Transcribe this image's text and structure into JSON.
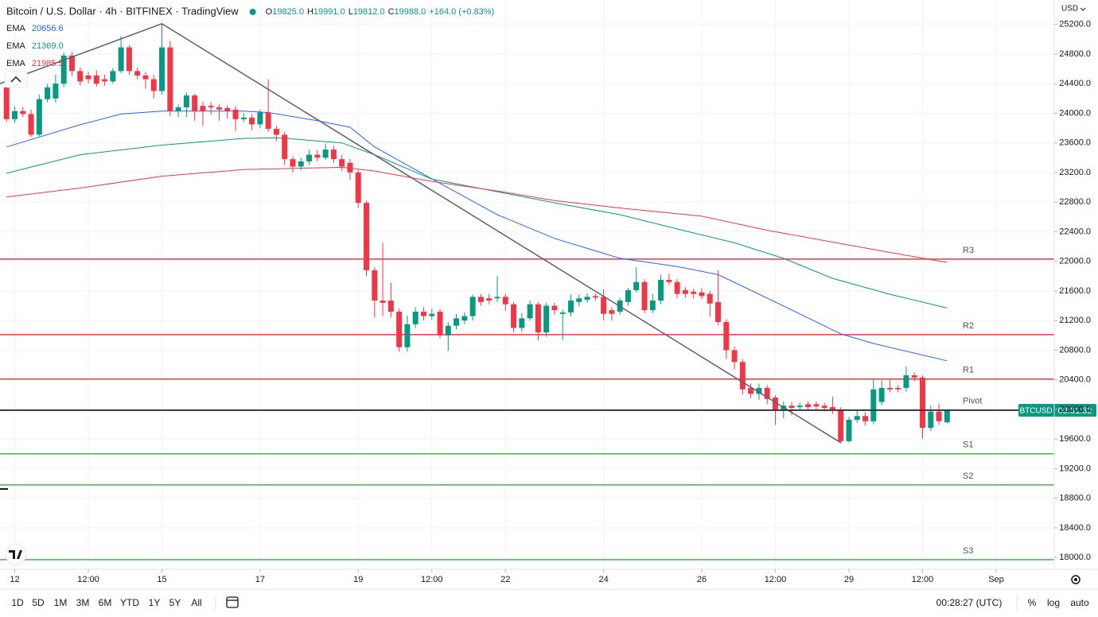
{
  "chart_data": {
    "type": "candlestick",
    "title": "Bitcoin / U.S. Dollar · 4h · BITFINEX · TradingView",
    "status_line": [
      {
        "label": "O",
        "value": "19825.0"
      },
      {
        "label": "H",
        "value": "19991.0"
      },
      {
        "label": "L",
        "value": "19812.0"
      },
      {
        "label": "C",
        "value": "19988.0"
      }
    ],
    "change": "+164.0 (+0.83%)",
    "currency": "USD",
    "symbol": "BTCUSD",
    "countdown": "03:31:32",
    "up_color": "#089981",
    "down_color": "#f23645",
    "open": [
      24350,
      23920,
      24030,
      23990,
      23710,
      24190,
      24200,
      24400,
      24780,
      24570,
      24510,
      24510,
      24460,
      24430,
      24570,
      24890,
      24570,
      24510,
      24460,
      24300,
      24890,
      24030,
      24080,
      24240,
      24100,
      24100,
      24080,
      24070,
      24050,
      23920,
      23940,
      23850,
      24010,
      23790,
      23710,
      23380,
      23280,
      23350,
      23440,
      23400,
      23510,
      23380,
      23330,
      23200,
      22790,
      21880,
      21470,
      21470,
      21320,
      20840,
      21150,
      21320,
      21260,
      21320,
      21000,
      21130,
      21200,
      21260,
      21520,
      21500,
      21500,
      21520,
      21420,
      21100,
      21230,
      21420,
      21040,
      21400,
      21290,
      21310,
      21450,
      21480,
      21530,
      21520,
      21340,
      21320,
      21450,
      21610,
      21720,
      21340,
      21470,
      21750,
      21720,
      21610,
      21590,
      21580,
      21560,
      21450,
      21180,
      20800,
      20640,
      20290,
      20210,
      20290,
      20160,
      20000,
      20050,
      20030,
      20070,
      20070,
      20050,
      20030,
      19990,
      19570,
      19860,
      19910,
      19840,
      20100,
      20290,
      20290,
      20290,
      20460,
      20430,
      19750,
      19970,
      19825
    ],
    "high": [
      24420,
      24090,
      24080,
      24050,
      24250,
      24400,
      24520,
      24820,
      24830,
      24620,
      24560,
      24580,
      24520,
      24610,
      25040,
      24920,
      24620,
      24560,
      24520,
      25210,
      24980,
      24120,
      24280,
      24260,
      24160,
      24150,
      24120,
      24110,
      24100,
      24000,
      23990,
      24050,
      24460,
      23830,
      23750,
      23420,
      23400,
      23510,
      23500,
      23590,
      23560,
      23440,
      23380,
      23230,
      22820,
      21920,
      22250,
      21710,
      21360,
      21270,
      21380,
      21380,
      21360,
      21360,
      21180,
      21290,
      21310,
      21550,
      21560,
      21560,
      21800,
      21560,
      21450,
      21300,
      21470,
      21450,
      21440,
      21440,
      21350,
      21550,
      21550,
      21570,
      21560,
      21620,
      21380,
      21510,
      21640,
      21920,
      21760,
      21560,
      21820,
      21830,
      21760,
      21650,
      21630,
      21640,
      21600,
      21880,
      21220,
      20850,
      20680,
      20350,
      20350,
      20330,
      20190,
      20110,
      20100,
      20090,
      20110,
      20110,
      20090,
      20170,
      20030,
      19900,
      19980,
      19960,
      20420,
      20390,
      20400,
      20330,
      20580,
      20500,
      20460,
      20050,
      20080,
      19991
    ],
    "low": [
      23880,
      23870,
      23950,
      23680,
      23690,
      24150,
      24150,
      24350,
      24500,
      24380,
      24400,
      24360,
      24370,
      24400,
      24540,
      24520,
      24460,
      24330,
      24200,
      24250,
      23960,
      23950,
      23950,
      23900,
      23830,
      23980,
      23900,
      23930,
      23760,
      23880,
      23770,
      23800,
      23750,
      23620,
      23300,
      23200,
      23230,
      23300,
      23350,
      23370,
      23330,
      23220,
      23100,
      22720,
      21800,
      21240,
      21260,
      21240,
      20780,
      20780,
      21100,
      21200,
      21210,
      20960,
      20790,
      21080,
      21150,
      21200,
      21400,
      21420,
      21450,
      21330,
      21040,
      21050,
      21200,
      20930,
      20980,
      21280,
      20940,
      21260,
      21390,
      21440,
      21470,
      21200,
      21200,
      21280,
      21400,
      21580,
      21300,
      21300,
      21420,
      21680,
      21500,
      21510,
      21500,
      21490,
      21250,
      21140,
      20680,
      20540,
      20200,
      20150,
      20130,
      20070,
      19790,
      19880,
      19920,
      19990,
      19990,
      19980,
      19970,
      19940,
      19540,
      19550,
      19820,
      19780,
      19800,
      20060,
      20230,
      20230,
      20240,
      20380,
      19610,
      19710,
      19790,
      19812
    ],
    "close": [
      23920,
      24030,
      23990,
      23710,
      24190,
      24350,
      24400,
      24780,
      24570,
      24430,
      24460,
      24400,
      24430,
      24570,
      24890,
      24570,
      24510,
      24460,
      24300,
      24890,
      24030,
      24080,
      24240,
      24030,
      24030,
      24080,
      24050,
      24030,
      23920,
      23940,
      23850,
      24010,
      23790,
      23710,
      23380,
      23280,
      23350,
      23440,
      23400,
      23510,
      23380,
      23280,
      23200,
      22790,
      21880,
      21470,
      21440,
      21320,
      20840,
      21150,
      21320,
      21260,
      21290,
      21000,
      21130,
      21230,
      21260,
      21520,
      21450,
      21470,
      21520,
      21420,
      21100,
      21230,
      21420,
      21040,
      21400,
      21340,
      21310,
      21470,
      21500,
      21520,
      21510,
      21290,
      21290,
      21470,
      21610,
      21720,
      21340,
      21470,
      21750,
      21720,
      21560,
      21560,
      21560,
      21530,
      21430,
      21180,
      20800,
      20640,
      20270,
      20210,
      20290,
      20140,
      20000,
      20050,
      20020,
      20050,
      20030,
      20040,
      20020,
      19990,
      19570,
      19860,
      19910,
      19840,
      20270,
      20290,
      20270,
      20270,
      20460,
      20430,
      19750,
      19970,
      19840,
      19988
    ],
    "series": [
      {
        "name": "EMA",
        "label": "20656.6",
        "color": "#2962ff",
        "x": [
          0,
          9,
          14,
          19,
          29,
          32,
          38,
          42,
          45,
          52,
          60,
          67,
          75,
          82,
          87,
          91,
          97,
          102,
          106,
          111,
          115
        ],
        "values": [
          23545,
          23845,
          23990,
          24030,
          24030,
          24010,
          23900,
          23810,
          23545,
          23115,
          22630,
          22310,
          22040,
          21930,
          21820,
          21610,
          21290,
          21020,
          20890,
          20760,
          20656.6
        ]
      },
      {
        "name": "EMA",
        "label": "21369.0",
        "color": "#089981",
        "x": [
          0,
          9,
          19,
          29,
          33,
          41,
          45,
          52,
          60,
          67,
          75,
          83,
          89,
          95,
          101,
          108,
          115
        ],
        "values": [
          23190,
          23440,
          23570,
          23660,
          23670,
          23600,
          23440,
          23110,
          22940,
          22790,
          22630,
          22410,
          22250,
          22040,
          21770,
          21555,
          21369
        ]
      },
      {
        "name": "EMA",
        "label": "21985.5",
        "color": "#f23645",
        "x": [
          0,
          9,
          19,
          29,
          41,
          45,
          52,
          60,
          67,
          75,
          85,
          93,
          101,
          108,
          115
        ],
        "values": [
          22870,
          22990,
          23150,
          23240,
          23270,
          23220,
          23080,
          22950,
          22820,
          22720,
          22610,
          22420,
          22260,
          22120,
          21985.5
        ]
      }
    ],
    "levels": [
      {
        "label": "R3",
        "value": 22030,
        "color": "#f23645"
      },
      {
        "label": "R2",
        "value": 21010,
        "color": "#f23645"
      },
      {
        "label": "R1",
        "value": 20410,
        "color": "#f23645"
      },
      {
        "label": "Pivot",
        "value": 19990,
        "color": "#000000"
      },
      {
        "label": "S1",
        "value": 19400,
        "color": "#4caf50"
      },
      {
        "label": "S2",
        "value": 18980,
        "color": "#4caf50"
      },
      {
        "label": "S3",
        "value": 17970,
        "color": "#4caf50"
      }
    ],
    "trendline": {
      "color": "#5d606b",
      "x": [
        -0.8,
        19,
        102
      ],
      "values": [
        24400,
        25210,
        19550
      ]
    },
    "xlim": [
      -0.8,
      128.1
    ],
    "ylim": [
      17840,
      25530
    ],
    "xticks": [
      {
        "value": 1,
        "label": "12"
      },
      {
        "value": 10,
        "label": "12:00"
      },
      {
        "value": 19,
        "label": "15"
      },
      {
        "value": 31,
        "label": "17"
      },
      {
        "value": 43,
        "label": "19"
      },
      {
        "value": 52,
        "label": "12:00"
      },
      {
        "value": 61,
        "label": "22"
      },
      {
        "value": 73,
        "label": "24"
      },
      {
        "value": 85,
        "label": "26"
      },
      {
        "value": 94,
        "label": "12:00"
      },
      {
        "value": 103,
        "label": "29"
      },
      {
        "value": 112,
        "label": "12:00"
      },
      {
        "value": 121,
        "label": "Sep"
      }
    ],
    "yticks": [
      {
        "value": 18000,
        "label": "18000.0"
      },
      {
        "value": 18400,
        "label": "18400.0"
      },
      {
        "value": 18800,
        "label": "18800.0"
      },
      {
        "value": 19200,
        "label": "19200.0"
      },
      {
        "value": 19600,
        "label": "19600.0"
      },
      {
        "value": 20000,
        "label": "20000.0"
      },
      {
        "value": 20400,
        "label": "20400.0"
      },
      {
        "value": 20800,
        "label": "20800.0"
      },
      {
        "value": 21200,
        "label": "21200.0"
      },
      {
        "value": 21600,
        "label": "21600.0"
      },
      {
        "value": 22000,
        "label": "22000.0"
      },
      {
        "value": 22400,
        "label": "22400.0"
      },
      {
        "value": 22800,
        "label": "22800.0"
      },
      {
        "value": 23200,
        "label": "23200.0"
      },
      {
        "value": 23600,
        "label": "23600.0"
      },
      {
        "value": 24000,
        "label": "24000.0"
      },
      {
        "value": 24400,
        "label": "24400.0"
      },
      {
        "value": 24800,
        "label": "24800.0"
      },
      {
        "value": 25200,
        "label": "25200.0"
      }
    ],
    "grid": true,
    "timeframes": [
      "1D",
      "5D",
      "1M",
      "3M",
      "6M",
      "YTD",
      "1Y",
      "5Y",
      "All"
    ],
    "clock": "00:28:27 (UTC)",
    "scale_buttons": [
      "%",
      "log",
      "auto"
    ]
  }
}
